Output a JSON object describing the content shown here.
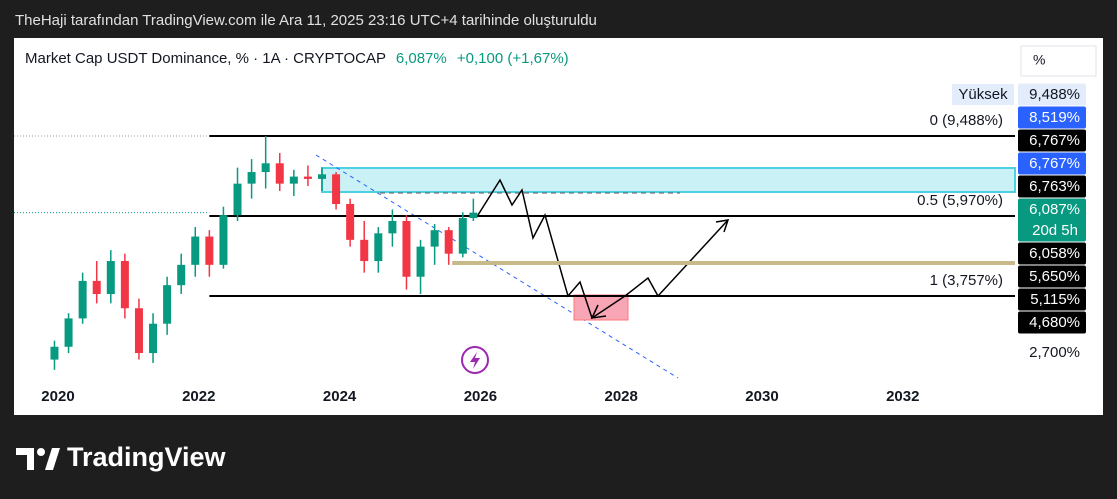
{
  "header": "TheHaji tarafından TradingView.com ile Ara 11, 2025 23:16 UTC+4 tarihinde oluşturuldu",
  "brand": "TradingView",
  "chart_data": {
    "type": "candlestick",
    "title": "Market Cap USDT Dominance, % · 1A · CRYPTOCAP",
    "last_price": "6,087%",
    "change": "+0,100 (+1,67%)",
    "scale_unit": "%",
    "log_scale": true,
    "up_color": "#089981",
    "down_color": "#f23645",
    "xlim": [
      2019.375,
      2033.594
    ],
    "xticks": [
      2020,
      2022,
      2024,
      2026,
      2028,
      2030,
      2032
    ],
    "ylim": [
      2.31,
      16.54
    ],
    "yticks": [
      {
        "value": 2.7,
        "label": "2,700%"
      }
    ],
    "candles": [
      {
        "x": 2019.95,
        "open": 2.6,
        "high": 2.9,
        "low": 2.45,
        "close": 2.8
      },
      {
        "x": 2020.15,
        "open": 2.8,
        "high": 3.4,
        "low": 2.7,
        "close": 3.3
      },
      {
        "x": 2020.35,
        "open": 3.3,
        "high": 4.3,
        "low": 3.2,
        "close": 4.1
      },
      {
        "x": 2020.55,
        "open": 4.1,
        "high": 4.6,
        "low": 3.6,
        "close": 3.8
      },
      {
        "x": 2020.75,
        "open": 3.8,
        "high": 4.9,
        "low": 3.6,
        "close": 4.6
      },
      {
        "x": 2020.95,
        "open": 4.6,
        "high": 4.8,
        "low": 3.3,
        "close": 3.5
      },
      {
        "x": 2021.15,
        "open": 3.5,
        "high": 3.7,
        "low": 2.6,
        "close": 2.7
      },
      {
        "x": 2021.35,
        "open": 2.7,
        "high": 3.4,
        "low": 2.55,
        "close": 3.2
      },
      {
        "x": 2021.55,
        "open": 3.2,
        "high": 4.2,
        "low": 3.0,
        "close": 4.0
      },
      {
        "x": 2021.75,
        "open": 4.0,
        "high": 4.8,
        "low": 3.8,
        "close": 4.5
      },
      {
        "x": 2021.95,
        "open": 4.5,
        "high": 5.6,
        "low": 4.2,
        "close": 5.3
      },
      {
        "x": 2022.15,
        "open": 5.3,
        "high": 5.5,
        "low": 4.2,
        "close": 4.5
      },
      {
        "x": 2022.35,
        "open": 4.5,
        "high": 6.3,
        "low": 4.4,
        "close": 6.0
      },
      {
        "x": 2022.55,
        "open": 6.0,
        "high": 7.9,
        "low": 5.8,
        "close": 7.2
      },
      {
        "x": 2022.75,
        "open": 7.2,
        "high": 8.3,
        "low": 6.6,
        "close": 7.7
      },
      {
        "x": 2022.95,
        "open": 7.7,
        "high": 9.488,
        "low": 7.0,
        "close": 8.1
      },
      {
        "x": 2023.15,
        "open": 8.1,
        "high": 8.6,
        "low": 6.9,
        "close": 7.2
      },
      {
        "x": 2023.35,
        "open": 7.2,
        "high": 7.8,
        "low": 6.7,
        "close": 7.5
      },
      {
        "x": 2023.55,
        "open": 7.5,
        "high": 8.0,
        "low": 7.1,
        "close": 7.4
      },
      {
        "x": 2023.75,
        "open": 7.4,
        "high": 7.9,
        "low": 6.9,
        "close": 7.6
      },
      {
        "x": 2023.95,
        "open": 7.6,
        "high": 7.7,
        "low": 6.2,
        "close": 6.4
      },
      {
        "x": 2024.15,
        "open": 6.4,
        "high": 6.6,
        "low": 5.0,
        "close": 5.2
      },
      {
        "x": 2024.35,
        "open": 5.2,
        "high": 5.8,
        "low": 4.3,
        "close": 4.6
      },
      {
        "x": 2024.55,
        "open": 4.6,
        "high": 5.6,
        "low": 4.3,
        "close": 5.4
      },
      {
        "x": 2024.75,
        "open": 5.4,
        "high": 6.2,
        "low": 5.0,
        "close": 5.8
      },
      {
        "x": 2024.95,
        "open": 5.8,
        "high": 6.0,
        "low": 3.9,
        "close": 4.2
      },
      {
        "x": 2025.15,
        "open": 4.2,
        "high": 5.2,
        "low": 3.8,
        "close": 5.0
      },
      {
        "x": 2025.35,
        "open": 5.0,
        "high": 5.7,
        "low": 4.5,
        "close": 5.5
      },
      {
        "x": 2025.55,
        "open": 5.5,
        "high": 5.6,
        "low": 4.5,
        "close": 4.8
      },
      {
        "x": 2025.75,
        "open": 4.8,
        "high": 6.1,
        "low": 4.7,
        "close": 5.9
      },
      {
        "x": 2025.9,
        "open": 5.9,
        "high": 6.6,
        "low": 5.8,
        "close": 6.087
      }
    ],
    "fib_start_x": 2022.15,
    "fib_levels": [
      {
        "label": "0 (9,488%)",
        "value": 9.488
      },
      {
        "label": "0.5 (5,970%)",
        "value": 5.97
      },
      {
        "label": "1 (3,757%)",
        "value": 3.757
      }
    ],
    "high_label": "Yüksek",
    "price_tags": [
      {
        "label": "9,488%",
        "value": 9.488,
        "color": "#e3ecfb",
        "text_color": "#131722"
      },
      {
        "label": "8,519%",
        "value": 8.519,
        "color": "#2962ff",
        "text_color": "#ffffff"
      },
      {
        "label": "6,767%",
        "value": 6.767,
        "color": "#000000",
        "text_color": "#ffffff"
      },
      {
        "label": "6,767%",
        "value": 6.767,
        "color": "#2962ff",
        "text_color": "#ffffff"
      },
      {
        "label": "6,763%",
        "value": 6.763,
        "color": "#000000",
        "text_color": "#ffffff"
      },
      {
        "label": "6,087%",
        "value": 6.087,
        "color": "#089981",
        "text_color": "#ffffff",
        "countdown": "20d 5h"
      },
      {
        "label": "6,058%",
        "value": 6.058,
        "color": "#000000",
        "text_color": "#ffffff"
      },
      {
        "label": "5,650%",
        "value": 5.65,
        "color": "#000000",
        "text_color": "#ffffff"
      },
      {
        "label": "5,115%",
        "value": 5.115,
        "color": "#000000",
        "text_color": "#ffffff"
      },
      {
        "label": "4,680%",
        "value": 4.68,
        "color": "#000000",
        "text_color": "#ffffff"
      }
    ]
  }
}
